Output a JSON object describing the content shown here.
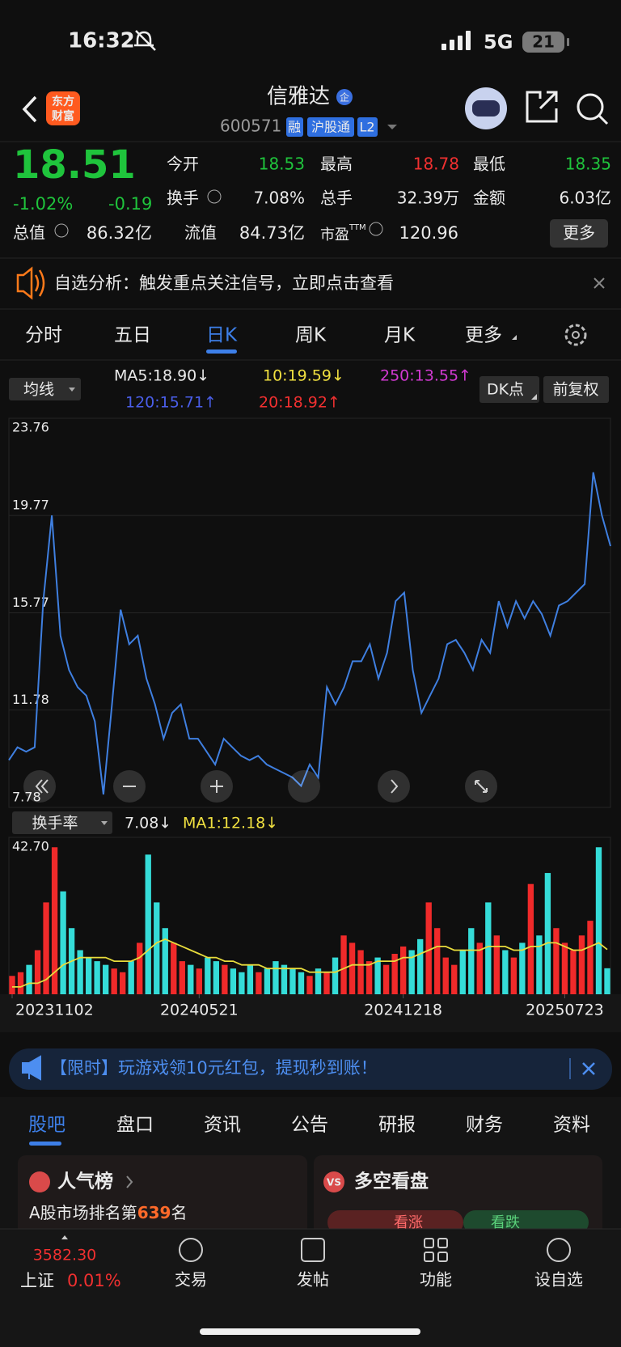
{
  "status_bar": {
    "time": "16:32",
    "network": "5G",
    "battery": "21"
  },
  "header": {
    "logo": [
      "东方",
      "财富"
    ],
    "title": "信雅达",
    "title_badge": "企",
    "code": "600571",
    "badges": [
      "融",
      "沪股通",
      "L2"
    ]
  },
  "quote": {
    "price": "18.51",
    "change_pct": "-1.02%",
    "change": "-0.19",
    "open": {
      "label": "今开",
      "value": "18.53"
    },
    "high": {
      "label": "最高",
      "value": "18.78"
    },
    "low": {
      "label": "最低",
      "value": "18.35"
    },
    "turnover": {
      "label": "换手",
      "value": "7.08%"
    },
    "volume": {
      "label": "总手",
      "value": "32.39万"
    },
    "amount": {
      "label": "金额",
      "value": "6.03亿"
    },
    "market_cap": {
      "label": "总值",
      "value": "86.32亿"
    },
    "float_cap": {
      "label": "流值",
      "value": "84.73亿"
    },
    "pe": {
      "label": "市盈",
      "sup": "TTM",
      "value": "120.96"
    },
    "more": "更多"
  },
  "notice": "自选分析：触发重点关注信号，立即点击查看",
  "chart_tabs": [
    "分时",
    "五日",
    "日K",
    "周K",
    "月K",
    "更多"
  ],
  "ma_bar": {
    "selector": "均线",
    "items": [
      "MA5:18.90↓",
      "10:19.59↓",
      "250:13.55↑",
      "120:15.71↑",
      "20:18.92↑"
    ],
    "dk": "DK点",
    "adjust": "前复权"
  },
  "volume_bar": {
    "selector": "换手率",
    "value": "7.08↓",
    "ma": "MA1:12.18↓"
  },
  "chart_data": [
    {
      "type": "line",
      "color": "#3f7fe0",
      "grid": true,
      "values": [
        9.72,
        10.25,
        10.07,
        10.25,
        16.25,
        19.77,
        14.83,
        13.42,
        12.72,
        12.37,
        11.31,
        8.31,
        12.01,
        15.9,
        14.48,
        14.83,
        13.07,
        12.01,
        10.6,
        11.66,
        12.01,
        10.6,
        10.6,
        10.07,
        9.54,
        10.6,
        10.25,
        9.9,
        9.72,
        9.9,
        9.54,
        9.36,
        9.19,
        9.01,
        8.66,
        9.54,
        9.01,
        12.72,
        12.01,
        12.72,
        13.78,
        13.78,
        14.48,
        13.07,
        14.13,
        16.25,
        16.6,
        13.42,
        11.66,
        12.37,
        13.07,
        14.48,
        14.66,
        14.13,
        13.42,
        14.66,
        14.13,
        16.25,
        15.19,
        16.25,
        15.54,
        16.25,
        15.72,
        14.83,
        16.07,
        16.25,
        16.6,
        16.95,
        21.54,
        19.77,
        18.51
      ],
      "ylim": [
        7.78,
        23.76
      ],
      "yticks": [
        23.76,
        19.77,
        15.77,
        11.78,
        7.78
      ]
    },
    {
      "type": "bar",
      "up_color": "#f02a2a",
      "down_color": "#35dcd8",
      "ma_color": "#e8dc3c",
      "grid": false,
      "values": [
        5,
        6,
        8,
        12,
        25,
        40,
        28,
        18,
        12,
        10,
        9,
        8,
        7,
        6,
        9,
        14,
        38,
        25,
        18,
        14,
        9,
        8,
        7,
        10,
        9,
        8,
        7,
        6,
        8,
        6,
        7,
        9,
        8,
        7,
        6,
        5,
        7,
        6,
        10,
        16,
        14,
        12,
        9,
        10,
        8,
        11,
        13,
        12,
        15,
        25,
        18,
        10,
        8,
        12,
        18,
        14,
        25,
        16,
        12,
        10,
        14,
        30,
        16,
        33,
        18,
        14,
        12,
        16,
        20,
        40,
        7.08
      ],
      "ma_values": [
        2,
        2,
        3,
        3,
        4,
        6,
        8,
        9,
        10,
        10,
        10,
        10,
        9,
        9,
        9,
        10,
        12,
        14,
        15,
        14,
        13,
        12,
        11,
        10,
        10,
        9,
        9,
        8,
        8,
        8,
        7,
        7,
        7,
        7,
        7,
        6,
        6,
        6,
        6,
        7,
        8,
        8,
        8,
        9,
        9,
        9,
        10,
        10,
        11,
        12,
        13,
        13,
        12,
        12,
        12,
        12,
        13,
        13,
        13,
        12,
        12,
        13,
        13,
        14,
        14,
        13,
        12,
        12,
        13,
        14,
        12.18
      ],
      "ylim": [
        0,
        42.7
      ],
      "yticks": [
        {
          "value": 42.7,
          "label": "42.70"
        }
      ],
      "xticks": [
        {
          "value": 0,
          "label": "20231102"
        },
        {
          "value": 22,
          "label": "20240521"
        },
        {
          "value": 46,
          "label": "20241218"
        },
        {
          "value": 65,
          "label": "20250723"
        }
      ]
    }
  ],
  "ad": "【限时】玩游戏领10元红包，提现秒到账！",
  "tabs": [
    "股吧",
    "盘口",
    "资讯",
    "公告",
    "研报",
    "财务",
    "资料"
  ],
  "cards": {
    "rank": {
      "title": "人气榜",
      "text_before": "A股市场排名第",
      "rank": "639",
      "text_after": "名"
    },
    "sentiment": {
      "badge": "VS",
      "title": "多空看盘",
      "up": "看涨",
      "down": "看跌"
    }
  },
  "bottom_nav": {
    "index_value": "3582.30",
    "index_name": "上证",
    "index_change": "0.01%",
    "items": [
      "交易",
      "发帖",
      "功能",
      "设自选"
    ]
  }
}
